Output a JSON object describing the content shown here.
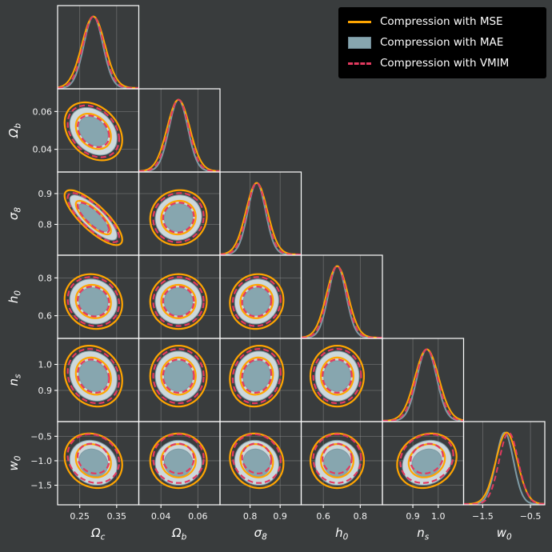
{
  "colors": {
    "background": "#393c3d",
    "panel_border": "#ffffff",
    "grid": "#9a9a9a",
    "text": "#ffffff",
    "tick_text": "#f2f2f2",
    "legend_background": "#000000"
  },
  "legend": {
    "position": "upper right",
    "items": [
      {
        "label": "Compression with MSE",
        "swatch": "line-solid",
        "color": "#ffa500"
      },
      {
        "label": "Compression with MAE",
        "swatch": "patch",
        "color": "#87a6af",
        "border": "#6d8893"
      },
      {
        "label": "Compression with VMIM",
        "swatch": "line-dashed",
        "color": "#e23a5f"
      }
    ]
  },
  "chart_data": {
    "type": "corner_plot",
    "description": "Triangle (corner) plot of posterior constraints on 6 cosmological parameters. Diagonal panels show 1D marginal densities; lower off-diagonal panels show 68% and 95% credible contours for three compression methods.",
    "grid": true,
    "legend_position": "upper right",
    "contour_levels_sigma": [
      2.49,
      1.52
    ],
    "parameters": [
      {
        "id": "omega_c",
        "label_base": "Ω",
        "label_sub": "c",
        "range": [
          0.19,
          0.41
        ],
        "ticks": [
          0.25,
          0.35
        ],
        "tick_labels": [
          "0.25",
          "0.35"
        ],
        "mean": 0.287,
        "sigma": 0.028
      },
      {
        "id": "omega_b",
        "label_base": "Ω",
        "label_sub": "b",
        "range": [
          0.028,
          0.072
        ],
        "ticks": [
          0.04,
          0.06
        ],
        "tick_labels": [
          "0.04",
          "0.06"
        ],
        "mean": 0.0495,
        "sigma": 0.0055
      },
      {
        "id": "sigma_8",
        "label_base": "σ",
        "label_sub": "8",
        "range": [
          0.7,
          0.97
        ],
        "ticks": [
          0.8,
          0.9
        ],
        "tick_labels": [
          "0.8",
          "0.9"
        ],
        "mean": 0.822,
        "sigma": 0.032
      },
      {
        "id": "h_0",
        "label_base": "h",
        "label_sub": "0",
        "range": [
          0.48,
          0.92
        ],
        "ticks": [
          0.6,
          0.8
        ],
        "tick_labels": [
          "0.6",
          "0.8"
        ],
        "mean": 0.675,
        "sigma": 0.052
      },
      {
        "id": "n_s",
        "label_base": "n",
        "label_sub": "s",
        "range": [
          0.78,
          1.1
        ],
        "ticks": [
          0.9,
          1.0
        ],
        "tick_labels": [
          "0.9",
          "1.0"
        ],
        "mean": 0.955,
        "sigma": 0.042
      },
      {
        "id": "w_0",
        "label_base": "w",
        "label_sub": "0",
        "range": [
          -1.9,
          -0.2
        ],
        "ticks": [
          -1.5,
          -0.5
        ],
        "tick_labels": [
          "−1.5",
          "−0.5"
        ],
        "ticks_y": [
          -1.5,
          -1.0,
          -0.5
        ],
        "tick_labels_y": [
          "−1.5",
          "−1.0",
          "−0.5"
        ],
        "mean": -1.0,
        "sigma": 0.2
      }
    ],
    "correlations": [
      [
        1.0,
        -0.3,
        -0.8,
        -0.1,
        -0.15,
        -0.15
      ],
      [
        -0.3,
        1.0,
        0.05,
        0.0,
        0.0,
        0.0
      ],
      [
        -0.8,
        0.05,
        1.0,
        0.05,
        0.1,
        -0.1
      ],
      [
        -0.1,
        0.0,
        0.05,
        1.0,
        0.0,
        0.0
      ],
      [
        -0.15,
        0.0,
        0.1,
        0.0,
        1.0,
        0.15
      ],
      [
        -0.15,
        0.0,
        -0.1,
        0.0,
        0.15,
        1.0
      ]
    ],
    "series": [
      {
        "name": "Compression with MSE",
        "color": "#ffa500",
        "style": "solid",
        "width_scale": 1.12,
        "mean_shift_sigma": [
          0,
          0,
          0,
          0,
          0,
          0
        ],
        "z": 1
      },
      {
        "name": "Compression with MAE",
        "color": "#7e9ba5",
        "style": "filled",
        "width_scale": 0.92,
        "fill_outer": "#cdd8db",
        "fill_inner": "#87a6af",
        "mean_shift_sigma": [
          0,
          0,
          0,
          0,
          0,
          -0.2
        ],
        "z": 0
      },
      {
        "name": "Compression with VMIM",
        "color": "#e23a5f",
        "style": "dashed",
        "width_scale": 1.0,
        "mean_shift_sigma": [
          0,
          0,
          0,
          0,
          0,
          0.22
        ],
        "z": 2
      }
    ]
  }
}
